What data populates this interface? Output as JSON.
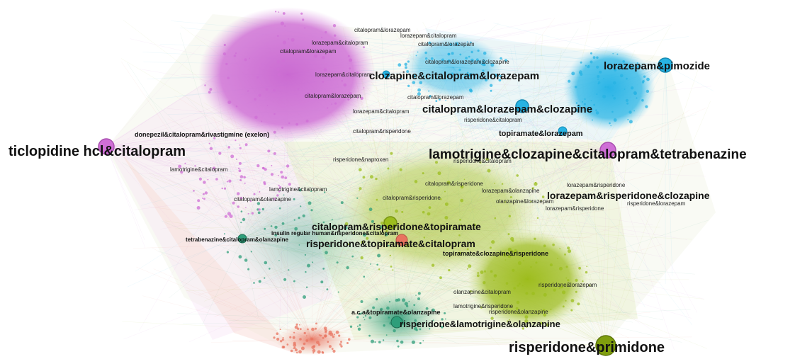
{
  "graph": {
    "clusters": [
      {
        "name": "citalopram-lorazepam-cluster",
        "color": "#cf6fd6"
      },
      {
        "name": "lorazepam-pimozide-cluster",
        "color": "#27b3e3"
      },
      {
        "name": "risperidone-cluster",
        "color": "#9cbd1e"
      },
      {
        "name": "olanzapine-cluster",
        "color": "#2e9e7a"
      },
      {
        "name": "edge-salmon-cluster",
        "color": "#e8735f"
      }
    ],
    "labels": {
      "l01": "ticlopidine hcl&citalopram",
      "l02": "lorazepam&pimozide",
      "l03": "clozapine&citalopram&lorazepam",
      "l04": "citalopram&lorazepam&clozapine",
      "l05": "lamotrigine&clozapine&citalopram&tetrabenazine",
      "l06": "lorazepam&risperidone&clozapine",
      "l07": "citalopram&risperidone&topiramate",
      "l08": "risperidone&topiramate&citalopram",
      "l09": "risperidone&lamotrigine&olanzapine",
      "l10": "risperidone&primidone",
      "l11": "topiramate&lorazepam",
      "l12": "donepezil&citalopram&rivastigmine (exelon)",
      "l13": "tetrabenazine&citalopram&olanzapine",
      "l14": "insulin regular human&risperidone&citalopram",
      "l15": "topiramate&clozapine&risperidone",
      "l16": "a.c.a&topiramate&olanzapine",
      "l17": "risperidone&naproxen",
      "l18": "citalopram&lorazepam",
      "l19": "lorazepam&citalopram",
      "l20": "citalopram&risperidone",
      "l21": "risperidone&citalopram",
      "l22": "citalopram&lorazepam&clozapine",
      "l23": "lorazepam&risperidone",
      "l24": "olanzapine&citalopram",
      "l25": "lamotrigine&citalopram",
      "l26": "citalopram&olanzapine",
      "l27": "olanzapine&lorazepam",
      "l28": "lorazepam&olanzapine",
      "l29": "risperidone&lorazepam",
      "l30": "risperidone&olanzapine",
      "l31": "lamotrigine&risperidone"
    }
  }
}
